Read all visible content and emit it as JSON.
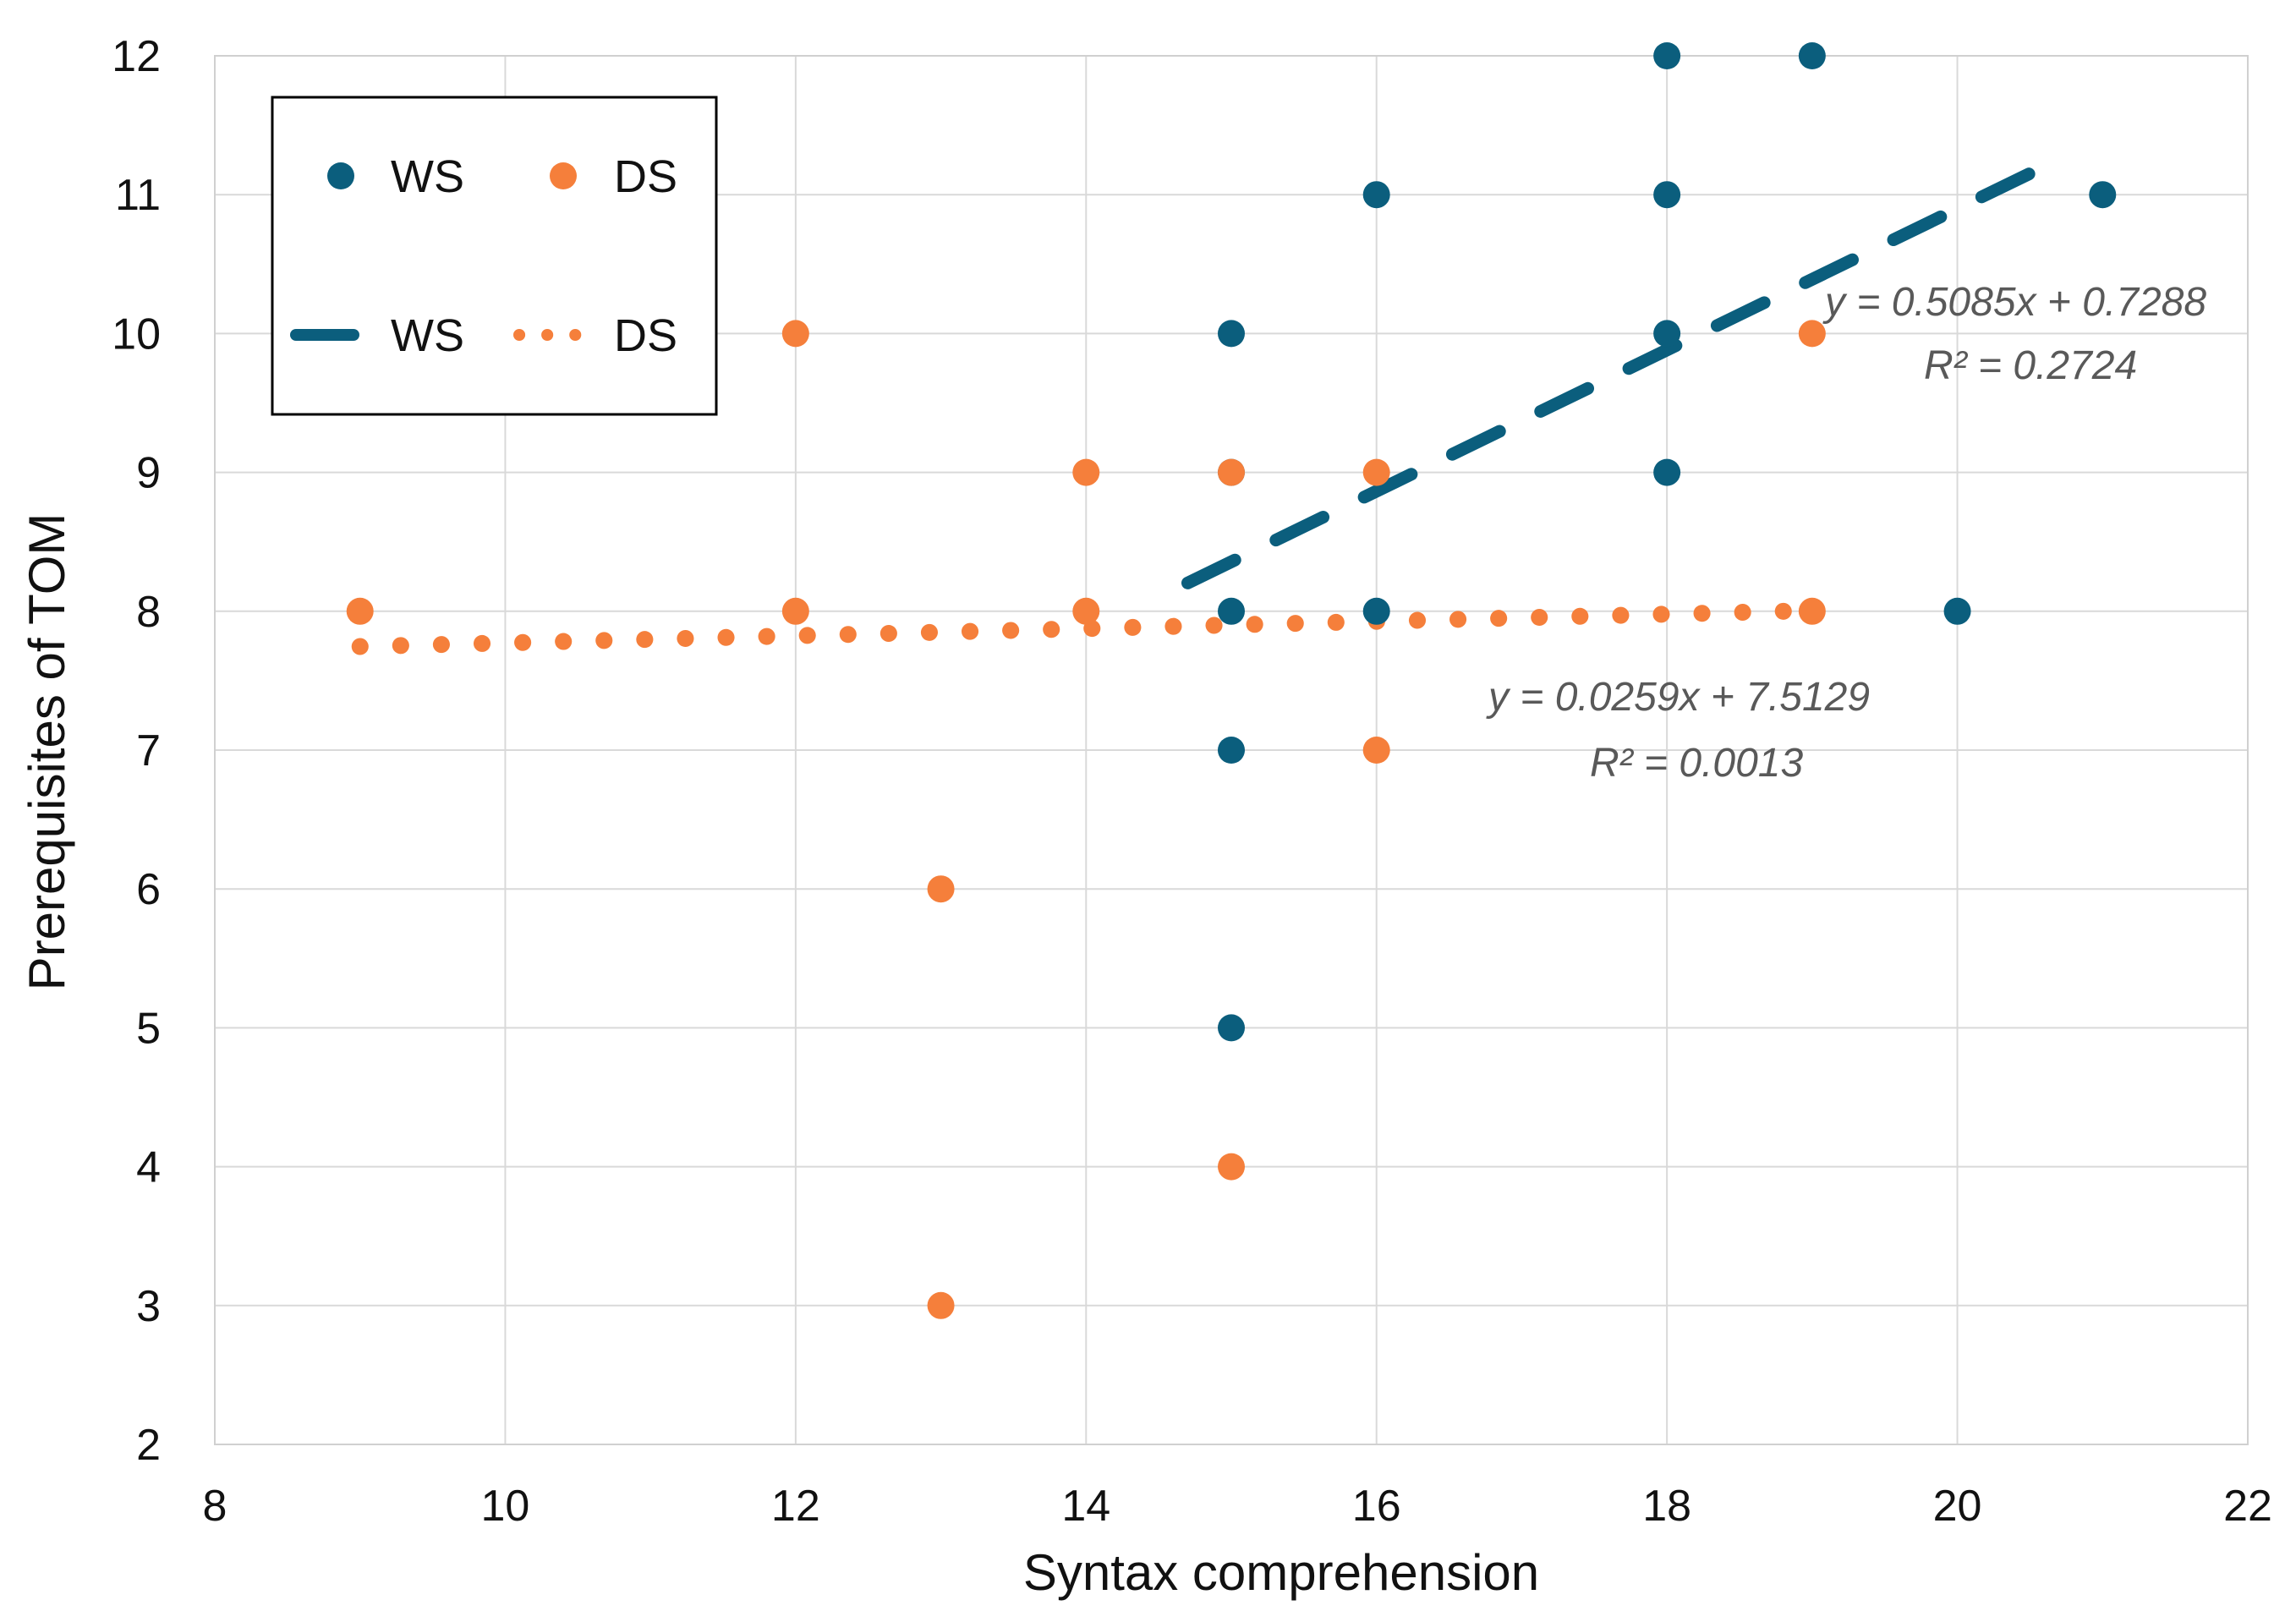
{
  "chart_data": {
    "type": "scatter",
    "title": "",
    "xlabel": "Syntax comprehension",
    "ylabel": "Prerequisites of TOM",
    "xlim": [
      8,
      22
    ],
    "ylim": [
      2,
      12
    ],
    "x_ticks": [
      8,
      10,
      12,
      14,
      16,
      18,
      20,
      22
    ],
    "y_ticks": [
      2,
      3,
      4,
      5,
      6,
      7,
      8,
      9,
      10,
      11,
      12
    ],
    "grid": true,
    "legend_position": "top-left",
    "series": [
      {
        "name": "WS",
        "color": "#0b5e7d",
        "marker": "circle",
        "points": [
          [
            15,
            10
          ],
          [
            15,
            9
          ],
          [
            15,
            8
          ],
          [
            15,
            7
          ],
          [
            15,
            5
          ],
          [
            16,
            11
          ],
          [
            16,
            8
          ],
          [
            18,
            12
          ],
          [
            18,
            11
          ],
          [
            18,
            10
          ],
          [
            18,
            9
          ],
          [
            19,
            12
          ],
          [
            20,
            8
          ],
          [
            21,
            11
          ]
        ]
      },
      {
        "name": "DS",
        "color": "#f57f3b",
        "marker": "circle",
        "points": [
          [
            9,
            8
          ],
          [
            12,
            10
          ],
          [
            12,
            8
          ],
          [
            13,
            6
          ],
          [
            13,
            3
          ],
          [
            14,
            9
          ],
          [
            14,
            8
          ],
          [
            15,
            9
          ],
          [
            15,
            4
          ],
          [
            16,
            9
          ],
          [
            16,
            7
          ],
          [
            19,
            10
          ],
          [
            19,
            8
          ]
        ]
      }
    ],
    "trendlines": [
      {
        "name": "WS",
        "color": "#0b5e7d",
        "style": "dashed",
        "slope": 0.5085,
        "intercept": 0.7288,
        "x_range": [
          14.7,
          20.7
        ],
        "equation": "y = 0.5085x + 0.7288",
        "r2": "R² = 0.2724"
      },
      {
        "name": "DS",
        "color": "#f57f3b",
        "style": "dotted",
        "slope": 0.0259,
        "intercept": 7.5129,
        "x_range": [
          9,
          19
        ],
        "equation": "y = 0.0259x + 7.5129",
        "r2": "R² = 0.0013"
      }
    ]
  }
}
